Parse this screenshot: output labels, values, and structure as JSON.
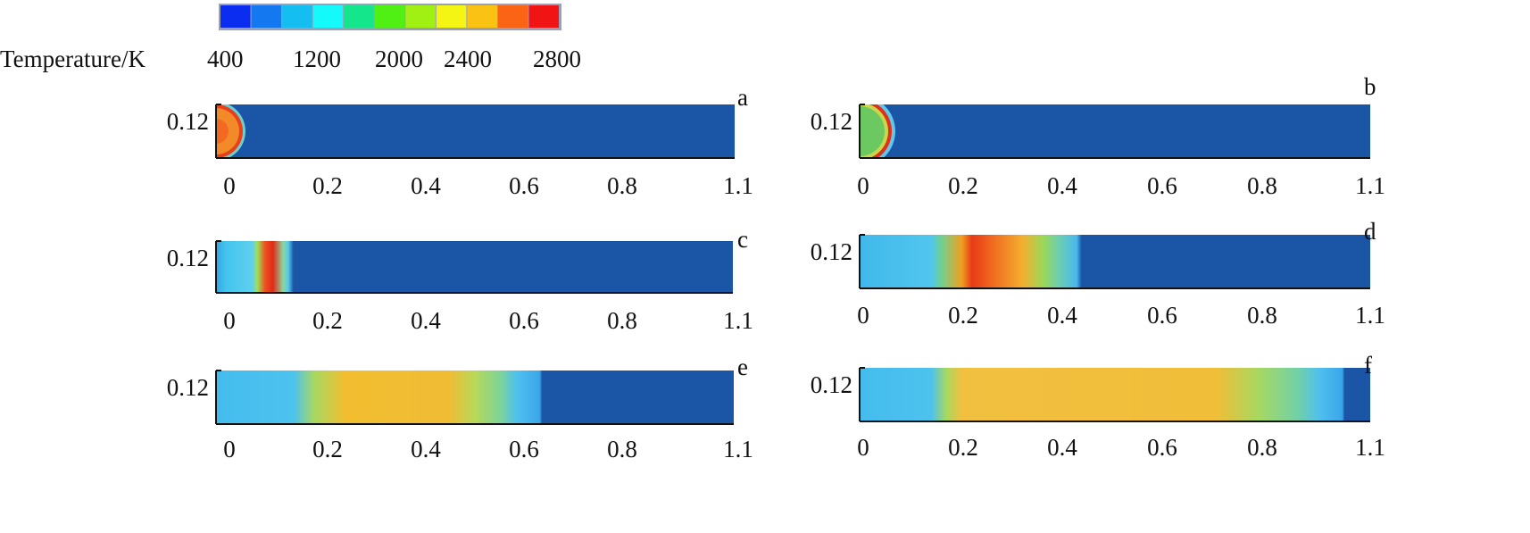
{
  "chart_data": {
    "type": "heatmap",
    "title": "",
    "colorbar": {
      "label": "Temperature/K",
      "tick_labels": [
        "400",
        "1200",
        "2000",
        "2400",
        "2800"
      ],
      "colors": [
        "#0a2df0",
        "#1478f0",
        "#14bef0",
        "#14fafa",
        "#14e68c",
        "#50f014",
        "#a0f014",
        "#f5f514",
        "#fac314",
        "#fa6414",
        "#f01414"
      ],
      "range": [
        400,
        2800
      ]
    },
    "panels": [
      {
        "label": "a",
        "ylabel": "0.12",
        "xticks": [
          "0",
          "0.2",
          "0.4",
          "0.6",
          "0.8",
          "1.1"
        ],
        "xlim": [
          0,
          1.1
        ],
        "flame_front_x": 0.03
      },
      {
        "label": "b",
        "ylabel": "0.12",
        "xticks": [
          "0",
          "0.2",
          "0.4",
          "0.6",
          "0.8",
          "1.1"
        ],
        "xlim": [
          0,
          1.1
        ],
        "flame_front_x": 0.05
      },
      {
        "label": "c",
        "ylabel": "0.12",
        "xticks": [
          "0",
          "0.2",
          "0.4",
          "0.6",
          "0.8",
          "1.1"
        ],
        "xlim": [
          0,
          1.1
        ],
        "flame_front_x": 0.15
      },
      {
        "label": "d",
        "ylabel": "0.12",
        "xticks": [
          "0",
          "0.2",
          "0.4",
          "0.6",
          "0.8",
          "1.1"
        ],
        "xlim": [
          0,
          1.1
        ],
        "flame_front_x": 0.45
      },
      {
        "label": "e",
        "ylabel": "0.12",
        "xticks": [
          "0",
          "0.2",
          "0.4",
          "0.6",
          "0.8",
          "1.1"
        ],
        "xlim": [
          0,
          1.1
        ],
        "flame_front_x": 0.62
      },
      {
        "label": "f",
        "ylabel": "0.12",
        "xticks": [
          "0",
          "0.2",
          "0.4",
          "0.6",
          "0.8",
          "1.1"
        ],
        "xlim": [
          0,
          1.1
        ],
        "flame_front_x": 1.05
      }
    ]
  }
}
